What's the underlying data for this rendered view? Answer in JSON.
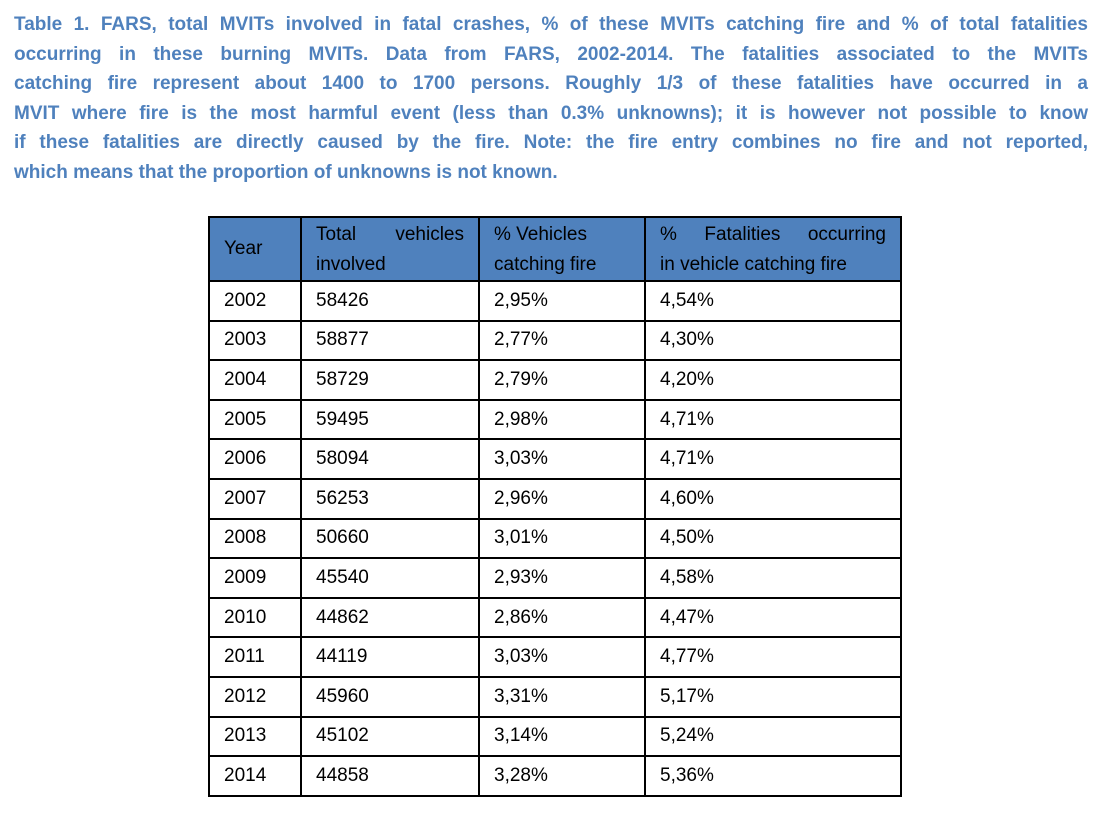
{
  "caption": {
    "lines": [
      "Table 1. FARS, total MVITs involved in fatal crashes, % of these MVITs catching fire and % of total fatalities",
      "occurring in these burning MVITs. Data from FARS, 2002-2014. The fatalities associated to the MVITs",
      "catching fire represent about 1400 to 1700 persons. Roughly 1/3 of these fatalities have occurred in a",
      "MVIT where fire is the most harmful event (less than 0.3% unknowns); it is however not possible to know",
      "if these fatalities are directly caused by the fire. Note: the fire entry combines no fire and not reported,",
      "which means that the proportion of unknowns is not known."
    ]
  },
  "table": {
    "headers": {
      "year": "Year",
      "total_line1": "Total vehicles",
      "total_line2": "involved",
      "fire_line1": "% Vehicles",
      "fire_line2": "catching fire",
      "fatal_line1": "% Fatalities occurring",
      "fatal_line2": "in vehicle catching fire"
    },
    "rows": [
      {
        "year": "2002",
        "total": "58426",
        "fire": "2,95%",
        "fatal": "4,54%"
      },
      {
        "year": "2003",
        "total": "58877",
        "fire": "2,77%",
        "fatal": "4,30%"
      },
      {
        "year": "2004",
        "total": "58729",
        "fire": "2,79%",
        "fatal": "4,20%"
      },
      {
        "year": "2005",
        "total": "59495",
        "fire": "2,98%",
        "fatal": "4,71%"
      },
      {
        "year": "2006",
        "total": "58094",
        "fire": "3,03%",
        "fatal": "4,71%"
      },
      {
        "year": "2007",
        "total": "56253",
        "fire": "2,96%",
        "fatal": "4,60%"
      },
      {
        "year": "2008",
        "total": "50660",
        "fire": "3,01%",
        "fatal": "4,50%"
      },
      {
        "year": "2009",
        "total": "45540",
        "fire": "2,93%",
        "fatal": "4,58%"
      },
      {
        "year": "2010",
        "total": "44862",
        "fire": "2,86%",
        "fatal": "4,47%"
      },
      {
        "year": "2011",
        "total": "44119",
        "fire": "3,03%",
        "fatal": "4,77%"
      },
      {
        "year": "2012",
        "total": "45960",
        "fire": "3,31%",
        "fatal": "5,17%"
      },
      {
        "year": "2013",
        "total": "45102",
        "fire": "3,14%",
        "fatal": "5,24%"
      },
      {
        "year": "2014",
        "total": "44858",
        "fire": "3,28%",
        "fatal": "5,36%"
      }
    ]
  }
}
